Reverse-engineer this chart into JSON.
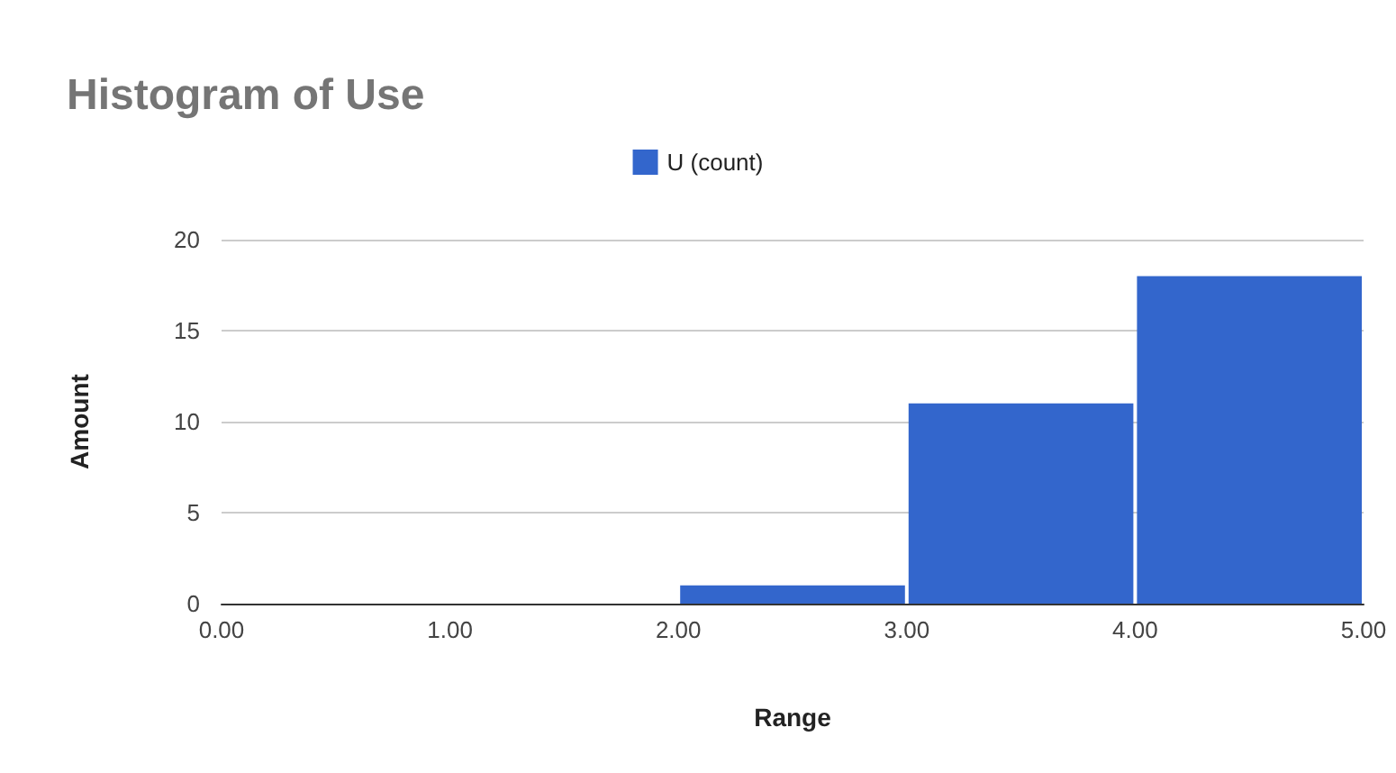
{
  "chart_data": {
    "type": "histogram",
    "title": "Histogram of Use",
    "xlabel": "Range",
    "ylabel": "Amount",
    "bins": [
      0,
      1,
      2,
      3,
      4,
      5
    ],
    "series": [
      {
        "name": "U (count)",
        "color": "#3366cc",
        "values": [
          0,
          0,
          1,
          11,
          18
        ]
      }
    ],
    "xlim": [
      0,
      5
    ],
    "xticks": [
      {
        "value": 0,
        "label": "0.00"
      },
      {
        "value": 1,
        "label": "1.00"
      },
      {
        "value": 2,
        "label": "2.00"
      },
      {
        "value": 3,
        "label": "3.00"
      },
      {
        "value": 4,
        "label": "4.00"
      },
      {
        "value": 5,
        "label": "5.00"
      }
    ],
    "ylim": [
      0,
      20
    ],
    "yticks": [
      0,
      5,
      10,
      15,
      20
    ],
    "grid": "y",
    "legend": "top"
  }
}
